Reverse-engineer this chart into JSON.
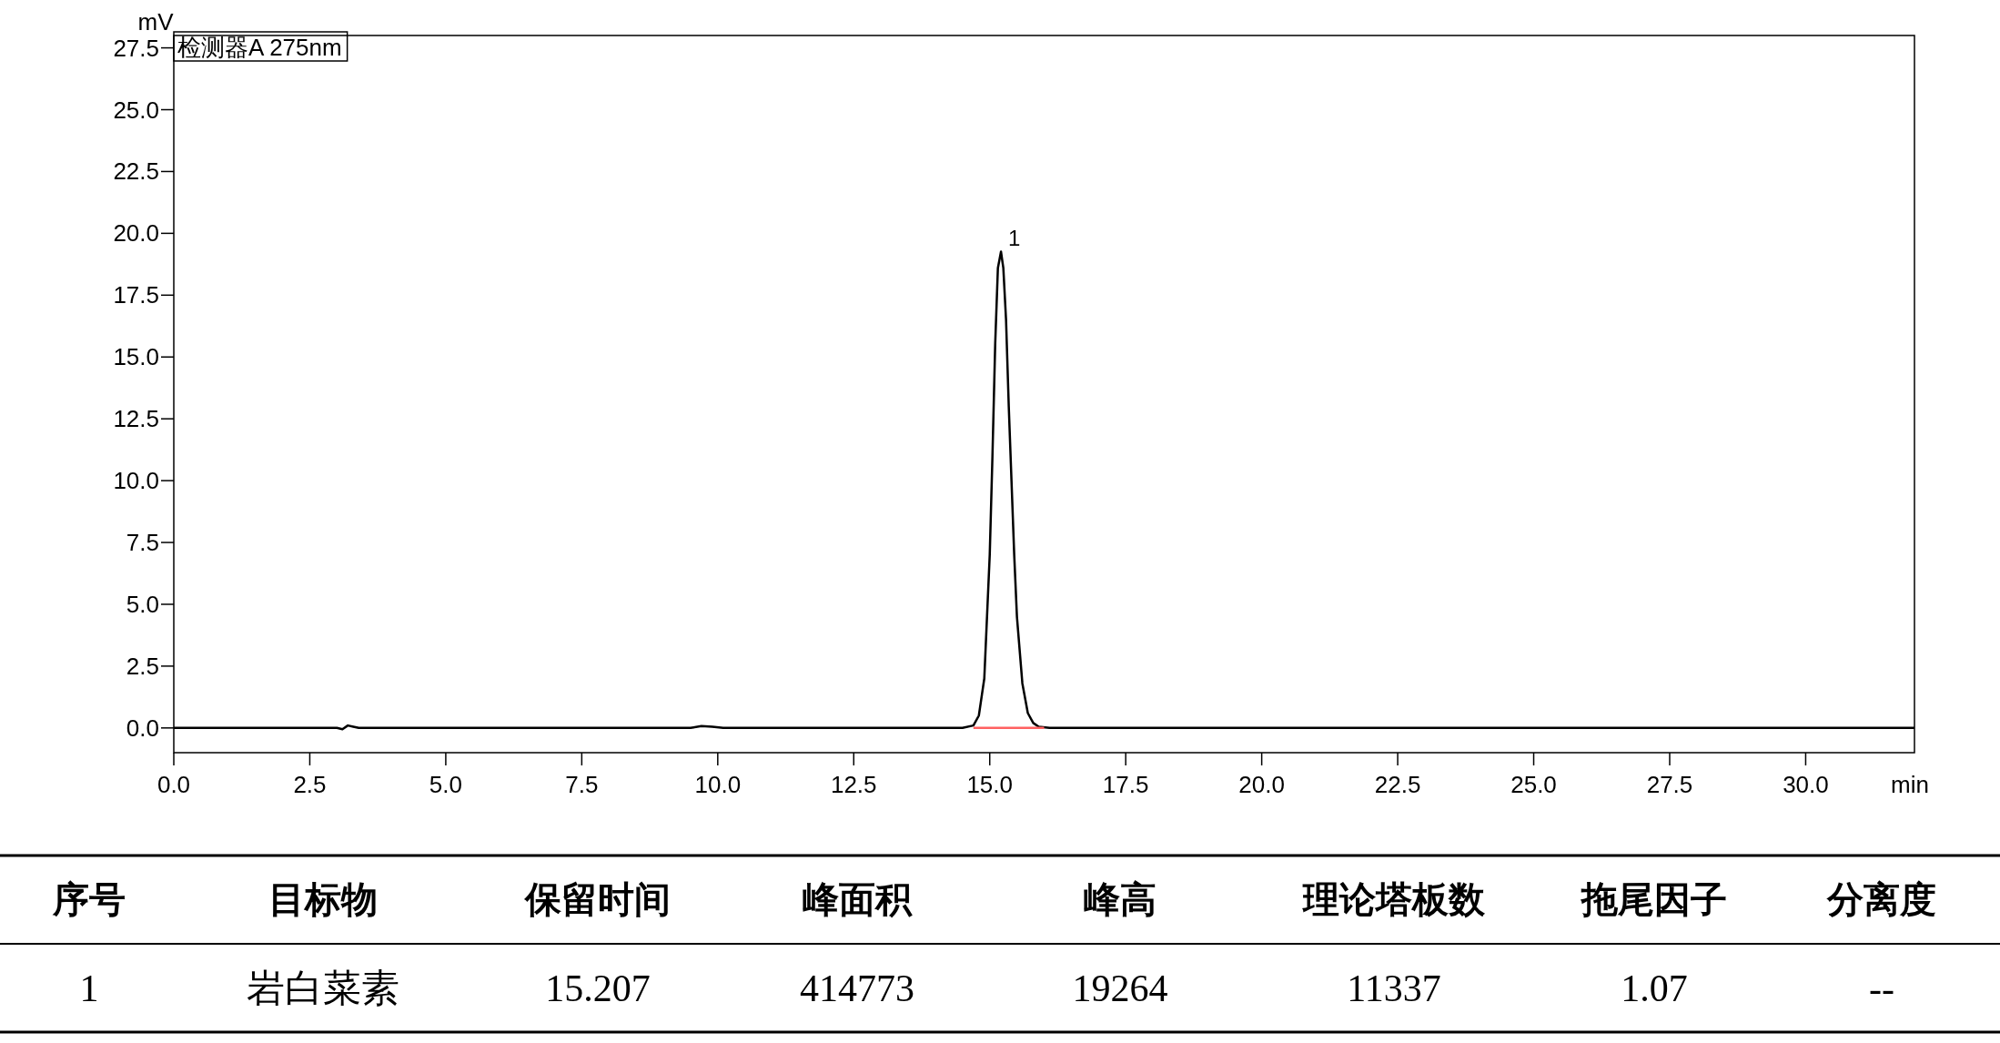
{
  "chart_data": {
    "type": "line",
    "xlabel": "min",
    "ylabel": "mV",
    "grid": false,
    "line_style": "solid",
    "xlim": [
      0,
      32
    ],
    "ylim": [
      -1,
      28
    ],
    "xticks": [
      {
        "value": 0,
        "label": "0.0"
      },
      {
        "value": 2.5,
        "label": "2.5"
      },
      {
        "value": 5,
        "label": "5.0"
      },
      {
        "value": 7.5,
        "label": "7.5"
      },
      {
        "value": 10,
        "label": "10.0"
      },
      {
        "value": 12.5,
        "label": "12.5"
      },
      {
        "value": 15,
        "label": "15.0"
      },
      {
        "value": 17.5,
        "label": "17.5"
      },
      {
        "value": 20,
        "label": "20.0"
      },
      {
        "value": 22.5,
        "label": "22.5"
      },
      {
        "value": 25,
        "label": "25.0"
      },
      {
        "value": 27.5,
        "label": "27.5"
      },
      {
        "value": 30,
        "label": "30.0"
      }
    ],
    "yticks": [
      {
        "value": 0,
        "label": "0.0"
      },
      {
        "value": 2.5,
        "label": "2.5"
      },
      {
        "value": 5,
        "label": "5.0"
      },
      {
        "value": 7.5,
        "label": "7.5"
      },
      {
        "value": 10,
        "label": "10.0"
      },
      {
        "value": 12.5,
        "label": "12.5"
      },
      {
        "value": 15,
        "label": "15.0"
      },
      {
        "value": 17.5,
        "label": "17.5"
      },
      {
        "value": 20,
        "label": "20.0"
      },
      {
        "value": 22.5,
        "label": "22.5"
      },
      {
        "value": 25,
        "label": "25.0"
      },
      {
        "value": 27.5,
        "label": "27.5"
      }
    ],
    "series": [
      {
        "color": "#000000",
        "x": [
          0,
          3.0,
          3.1,
          3.2,
          3.3,
          3.4,
          9.5,
          9.7,
          9.9,
          10.1,
          14.5,
          14.7,
          14.8,
          14.9,
          15.0,
          15.05,
          15.1,
          15.15,
          15.207,
          15.25,
          15.3,
          15.35,
          15.4,
          15.45,
          15.5,
          15.6,
          15.7,
          15.8,
          15.9,
          16.1,
          32
        ],
        "values": [
          0,
          0,
          -0.05,
          0.1,
          0.05,
          0,
          0,
          0.08,
          0.05,
          0,
          0,
          0.1,
          0.5,
          2.0,
          7.0,
          11.0,
          15.5,
          18.6,
          19.26,
          18.6,
          16.5,
          13.0,
          10.0,
          7.0,
          4.5,
          1.8,
          0.6,
          0.2,
          0.05,
          0,
          0
        ]
      },
      {
        "color": "#ff6060",
        "x": [
          14.7,
          16.0
        ],
        "values": [
          0,
          0
        ]
      }
    ],
    "annotations": [
      "检测器A 275nm",
      {
        "text": "1",
        "x": 15.207,
        "y": 19.26
      },
      "序号",
      "目标物",
      "保留时间",
      "峰面积",
      "峰高",
      "理论塔板数",
      "拖尾因子",
      "分离度",
      "1",
      "岩白菜素",
      "15.207",
      "414773",
      "19264",
      "11337",
      "1.07",
      "--"
    ]
  }
}
